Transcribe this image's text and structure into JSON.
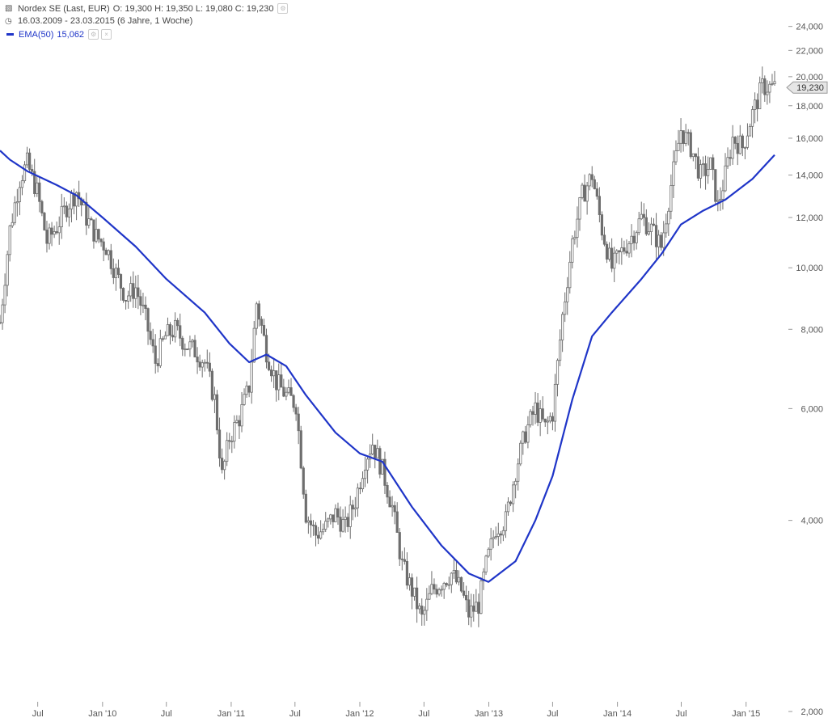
{
  "header": {
    "instrument": "Nordex SE (Last, EUR)",
    "ohlc": "O: 19,300  H: 19,350  L: 19,080  C: 19,230",
    "period": "16.03.2009 - 23.03.2015 (6 Jahre, 1 Woche)",
    "ema_label": "EMA(50)",
    "ema_value": "15,062",
    "colors": {
      "candles": "#6e6e6e",
      "ema": "#1f35c8",
      "axis_text": "#555555",
      "grid": "#dddddd"
    }
  },
  "chart_data": {
    "type": "line",
    "y_scale": "log",
    "ylim": [
      2,
      25.5
    ],
    "y_ticks": [
      2,
      4,
      6,
      8,
      10,
      12,
      14,
      16,
      18,
      20,
      22,
      24
    ],
    "y_tick_labels": [
      "2,000",
      "4,000",
      "6,000",
      "8,000",
      "10,000",
      "12,000",
      "14,000",
      "16,000",
      "18,000",
      "20,000",
      "22,000",
      "24,000"
    ],
    "x_range": [
      "2009-03-16",
      "2015-03-23"
    ],
    "x_ticks": [
      "2009-07-01",
      "2010-01-01",
      "2010-07-01",
      "2011-01-01",
      "2011-07-01",
      "2012-01-01",
      "2012-07-01",
      "2013-01-01",
      "2013-07-01",
      "2014-01-01",
      "2014-07-01",
      "2015-01-01"
    ],
    "x_tick_labels": [
      "Jul",
      "Jan '10",
      "Jul",
      "Jan '11",
      "Jul",
      "Jan '12",
      "Jul",
      "Jan '13",
      "Jul",
      "Jan '14",
      "Jul",
      "Jan '15"
    ],
    "last_price_label": "19,230",
    "last_price": 19.23,
    "series": [
      {
        "name": "Nordex SE",
        "points": [
          [
            "2009-03-16",
            8.2
          ],
          [
            "2009-04-13",
            11.5
          ],
          [
            "2009-05-11",
            13.8
          ],
          [
            "2009-06-01",
            14.6
          ],
          [
            "2009-06-29",
            13.2
          ],
          [
            "2009-07-27",
            11.0
          ],
          [
            "2009-08-24",
            11.6
          ],
          [
            "2009-09-21",
            12.5
          ],
          [
            "2009-10-19",
            13.2
          ],
          [
            "2009-11-16",
            12.0
          ],
          [
            "2009-12-14",
            11.2
          ],
          [
            "2010-01-11",
            10.8
          ],
          [
            "2010-02-08",
            9.8
          ],
          [
            "2010-03-08",
            9.0
          ],
          [
            "2010-04-05",
            9.3
          ],
          [
            "2010-05-03",
            8.3
          ],
          [
            "2010-05-31",
            7.1
          ],
          [
            "2010-06-28",
            7.8
          ],
          [
            "2010-07-26",
            8.0
          ],
          [
            "2010-08-23",
            7.6
          ],
          [
            "2010-09-20",
            7.4
          ],
          [
            "2010-10-18",
            7.1
          ],
          [
            "2010-11-15",
            6.2
          ],
          [
            "2010-12-06",
            4.7
          ],
          [
            "2010-12-27",
            5.4
          ],
          [
            "2011-01-24",
            5.8
          ],
          [
            "2011-02-21",
            6.5
          ],
          [
            "2011-03-14",
            8.8
          ],
          [
            "2011-04-11",
            7.4
          ],
          [
            "2011-05-09",
            6.6
          ],
          [
            "2011-06-06",
            6.3
          ],
          [
            "2011-07-04",
            6.1
          ],
          [
            "2011-08-01",
            4.1
          ],
          [
            "2011-08-29",
            3.8
          ],
          [
            "2011-09-26",
            3.9
          ],
          [
            "2011-10-24",
            4.1
          ],
          [
            "2011-11-21",
            3.9
          ],
          [
            "2011-12-19",
            4.3
          ],
          [
            "2012-01-16",
            5.0
          ],
          [
            "2012-02-06",
            5.3
          ],
          [
            "2012-03-05",
            4.8
          ],
          [
            "2012-04-02",
            4.2
          ],
          [
            "2012-04-30",
            3.4
          ],
          [
            "2012-05-28",
            3.1
          ],
          [
            "2012-06-25",
            2.8
          ],
          [
            "2012-07-23",
            3.1
          ],
          [
            "2012-08-20",
            3.2
          ],
          [
            "2012-09-17",
            3.3
          ],
          [
            "2012-10-15",
            3.1
          ],
          [
            "2012-11-05",
            2.85
          ],
          [
            "2012-12-03",
            2.95
          ],
          [
            "2012-12-24",
            3.4
          ],
          [
            "2013-01-21",
            3.9
          ],
          [
            "2013-02-18",
            4.0
          ],
          [
            "2013-03-18",
            4.8
          ],
          [
            "2013-04-15",
            5.5
          ],
          [
            "2013-05-13",
            6.0
          ],
          [
            "2013-06-10",
            5.6
          ],
          [
            "2013-07-01",
            5.9
          ],
          [
            "2013-07-29",
            8.4
          ],
          [
            "2013-08-26",
            11.0
          ],
          [
            "2013-09-23",
            13.0
          ],
          [
            "2013-10-21",
            14.0
          ],
          [
            "2013-11-18",
            11.5
          ],
          [
            "2013-12-16",
            10.0
          ],
          [
            "2014-01-13",
            10.6
          ],
          [
            "2014-02-10",
            11.2
          ],
          [
            "2014-03-10",
            12.0
          ],
          [
            "2014-04-07",
            11.5
          ],
          [
            "2014-05-05",
            10.8
          ],
          [
            "2014-06-02",
            13.5
          ],
          [
            "2014-06-30",
            16.5
          ],
          [
            "2014-07-28",
            15.5
          ],
          [
            "2014-08-25",
            14.0
          ],
          [
            "2014-09-22",
            14.5
          ],
          [
            "2014-10-13",
            12.5
          ],
          [
            "2014-11-03",
            14.0
          ],
          [
            "2014-11-24",
            16.0
          ],
          [
            "2014-12-22",
            15.5
          ],
          [
            "2015-01-19",
            17.5
          ],
          [
            "2015-02-16",
            19.3
          ],
          [
            "2015-03-23",
            19.23
          ]
        ]
      },
      {
        "name": "EMA(50)",
        "points": [
          [
            "2009-03-16",
            15.3
          ],
          [
            "2009-04-13",
            14.8
          ],
          [
            "2009-06-01",
            14.2
          ],
          [
            "2009-08-24",
            13.5
          ],
          [
            "2009-10-19",
            13.0
          ],
          [
            "2010-01-01",
            12.0
          ],
          [
            "2010-04-05",
            10.8
          ],
          [
            "2010-07-01",
            9.6
          ],
          [
            "2010-10-18",
            8.5
          ],
          [
            "2010-12-27",
            7.6
          ],
          [
            "2011-02-21",
            7.1
          ],
          [
            "2011-04-11",
            7.3
          ],
          [
            "2011-06-06",
            7.0
          ],
          [
            "2011-08-01",
            6.3
          ],
          [
            "2011-10-24",
            5.5
          ],
          [
            "2012-01-01",
            5.1
          ],
          [
            "2012-03-05",
            4.95
          ],
          [
            "2012-05-28",
            4.2
          ],
          [
            "2012-08-20",
            3.65
          ],
          [
            "2012-11-05",
            3.3
          ],
          [
            "2012-12-31",
            3.2
          ],
          [
            "2013-03-18",
            3.45
          ],
          [
            "2013-05-13",
            4.0
          ],
          [
            "2013-07-01",
            4.7
          ],
          [
            "2013-08-26",
            6.2
          ],
          [
            "2013-10-21",
            7.8
          ],
          [
            "2013-12-16",
            8.5
          ],
          [
            "2014-03-10",
            9.6
          ],
          [
            "2014-05-05",
            10.5
          ],
          [
            "2014-06-30",
            11.7
          ],
          [
            "2014-09-01",
            12.3
          ],
          [
            "2014-11-03",
            12.8
          ],
          [
            "2015-01-19",
            13.8
          ],
          [
            "2015-03-23",
            15.06
          ]
        ]
      }
    ]
  }
}
